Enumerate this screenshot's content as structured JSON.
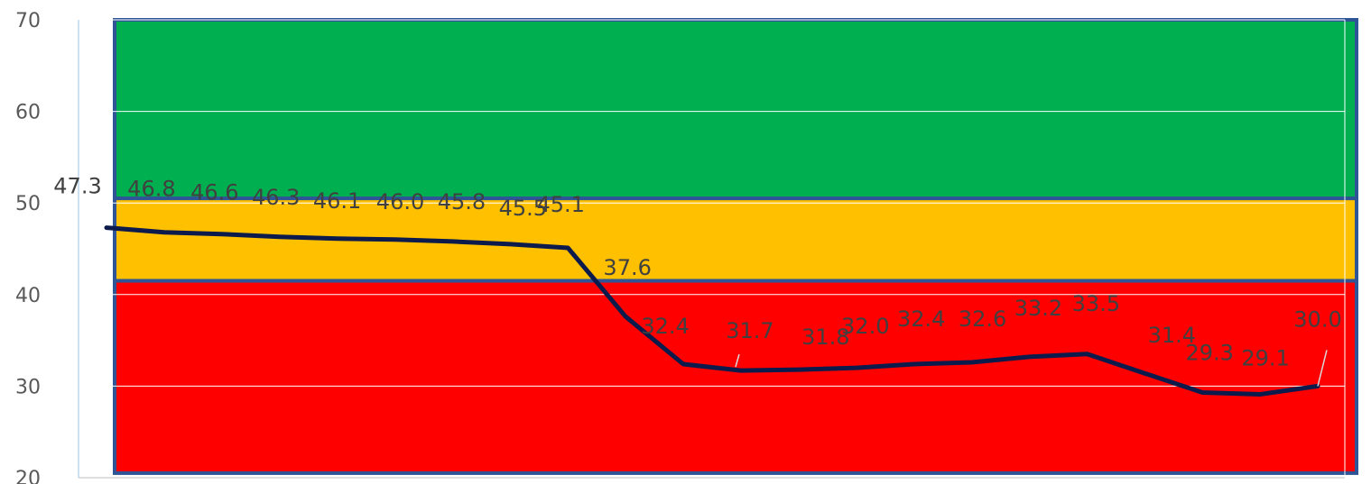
{
  "chart_data": {
    "type": "line",
    "title": "",
    "xlabel": "",
    "ylabel": "",
    "ylim": [
      20,
      70
    ],
    "yticks": [
      "20",
      "30",
      "40",
      "50",
      "60",
      "70"
    ],
    "grid": true,
    "legend": "none",
    "bands": [
      {
        "from": 50.5,
        "to": 70,
        "color": "#00b050"
      },
      {
        "from": 41.5,
        "to": 50.5,
        "color": "#ffc000"
      },
      {
        "from": 20.5,
        "to": 41.5,
        "color": "#ff0000"
      }
    ],
    "band_border_color": "#2f5597",
    "series": [
      {
        "color": "#0d1b4c",
        "values": [
          47.3,
          46.8,
          46.6,
          46.3,
          46.1,
          46.0,
          45.8,
          45.5,
          45.1,
          37.6,
          32.4,
          31.7,
          31.8,
          32.0,
          32.4,
          32.6,
          33.2,
          33.5,
          31.4,
          29.3,
          29.1,
          30.0
        ],
        "labels": [
          "47.3",
          "46.8",
          "46.6",
          "46.3",
          "46.1",
          "46.0",
          "45.8",
          "45.5",
          "45.1",
          "37.6",
          "32.4",
          "31.7",
          "31.8",
          "32.0",
          "32.4",
          "32.6",
          "33.2",
          "33.5",
          "31.4",
          "29.3",
          "29.1",
          "30.0"
        ],
        "highlight_last_label_color": "#ffff00"
      }
    ]
  }
}
